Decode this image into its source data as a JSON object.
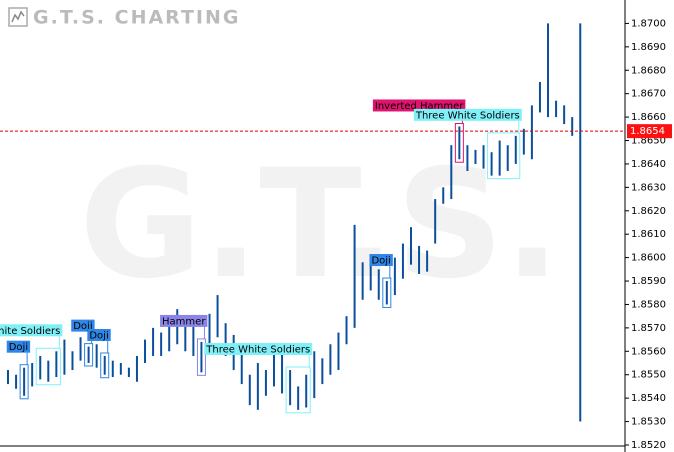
{
  "chart_data": {
    "type": "ohlc",
    "logo": "G.T.S. CHARTING",
    "watermark": "G.T.S.",
    "color": "#0b4f9c",
    "high": [
      1.8552,
      1.855,
      1.8553,
      1.8555,
      1.8558,
      1.8556,
      1.856,
      1.8565,
      1.856,
      1.8566,
      1.8562,
      1.8563,
      1.8558,
      1.8556,
      1.8555,
      1.8553,
      1.8558,
      1.8565,
      1.857,
      1.8568,
      1.8575,
      1.8578,
      1.8575,
      1.8572,
      1.8564,
      1.8576,
      1.8584,
      1.8572,
      1.8567,
      1.856,
      1.855,
      1.8555,
      1.8552,
      1.8562,
      1.856,
      1.8552,
      1.8545,
      1.855,
      1.856,
      1.8557,
      1.8563,
      1.8568,
      1.8575,
      1.8614,
      1.8598,
      1.86,
      1.8595,
      1.859,
      1.86,
      1.8606,
      1.8613,
      1.8605,
      1.8603,
      1.8625,
      1.863,
      1.8648,
      1.8656,
      1.8648,
      1.8646,
      1.8648,
      1.8645,
      1.865,
      1.8648,
      1.8652,
      1.8655,
      1.8665,
      1.8675,
      1.87,
      1.8667,
      1.8665,
      1.866,
      1.87
    ],
    "low": [
      1.8546,
      1.8544,
      1.8541,
      1.8545,
      1.8548,
      1.8547,
      1.8549,
      1.855,
      1.8552,
      1.8556,
      1.8555,
      1.8553,
      1.855,
      1.8549,
      1.855,
      1.8549,
      1.8547,
      1.8555,
      1.8558,
      1.8558,
      1.856,
      1.8563,
      1.856,
      1.8558,
      1.8551,
      1.8562,
      1.8566,
      1.8558,
      1.8552,
      1.8546,
      1.8537,
      1.8535,
      1.8541,
      1.8545,
      1.8542,
      1.8537,
      1.8535,
      1.8536,
      1.854,
      1.8546,
      1.855,
      1.8552,
      1.8563,
      1.857,
      1.8582,
      1.8586,
      1.8582,
      1.858,
      1.8584,
      1.8591,
      1.8597,
      1.8593,
      1.8594,
      1.8606,
      1.8623,
      1.8625,
      1.8642,
      1.8637,
      1.864,
      1.8638,
      1.8635,
      1.8635,
      1.8637,
      1.864,
      1.8644,
      1.8642,
      1.8662,
      1.866,
      1.866,
      1.8657,
      1.8652,
      1.853
    ],
    "patterns": [
      {
        "label": "Doji",
        "color": "#2f86e6",
        "start": 2,
        "end": 2
      },
      {
        "label": "Three White Soldiers",
        "color": "#7ff0f8",
        "start": 4,
        "end": 6
      },
      {
        "label": "Doji",
        "color": "#2f86e6",
        "start": 10,
        "end": 10
      },
      {
        "label": "Doji",
        "color": "#2f86e6",
        "start": 12,
        "end": 12
      },
      {
        "label": "Hammer",
        "color": "#8a84e8",
        "start": 24,
        "end": 24
      },
      {
        "label": "Three White Soldiers",
        "color": "#7ff0f8",
        "start": 35,
        "end": 37
      },
      {
        "label": "Doji",
        "color": "#2f86e6",
        "start": 47,
        "end": 47
      },
      {
        "label": "Inverted Hammer",
        "color": "#e0146e",
        "start": 56,
        "end": 56
      },
      {
        "label": "Three White Soldiers",
        "color": "#7ff0f8",
        "start": 60,
        "end": 63
      }
    ],
    "current_price": 1.8654,
    "ylim": [
      1.8517,
      1.871
    ],
    "yticks": [
      {
        "value": 1.852,
        "label": "1.8520"
      },
      {
        "value": 1.853,
        "label": "1.8530"
      },
      {
        "value": 1.854,
        "label": "1.8540"
      },
      {
        "value": 1.855,
        "label": "1.8550"
      },
      {
        "value": 1.856,
        "label": "1.8560"
      },
      {
        "value": 1.857,
        "label": "1.8570"
      },
      {
        "value": 1.858,
        "label": "1.8580"
      },
      {
        "value": 1.859,
        "label": "1.8590"
      },
      {
        "value": 1.86,
        "label": "1.8600"
      },
      {
        "value": 1.861,
        "label": "1.8610"
      },
      {
        "value": 1.862,
        "label": "1.8620"
      },
      {
        "value": 1.863,
        "label": "1.8630"
      },
      {
        "value": 1.864,
        "label": "1.8640"
      },
      {
        "value": 1.865,
        "label": "1.8650"
      },
      {
        "value": 1.866,
        "label": "1.8660"
      },
      {
        "value": 1.867,
        "label": "1.8670"
      },
      {
        "value": 1.868,
        "label": "1.8680"
      },
      {
        "value": 1.869,
        "label": "1.8690"
      },
      {
        "value": 1.87,
        "label": "1.8700"
      }
    ]
  }
}
